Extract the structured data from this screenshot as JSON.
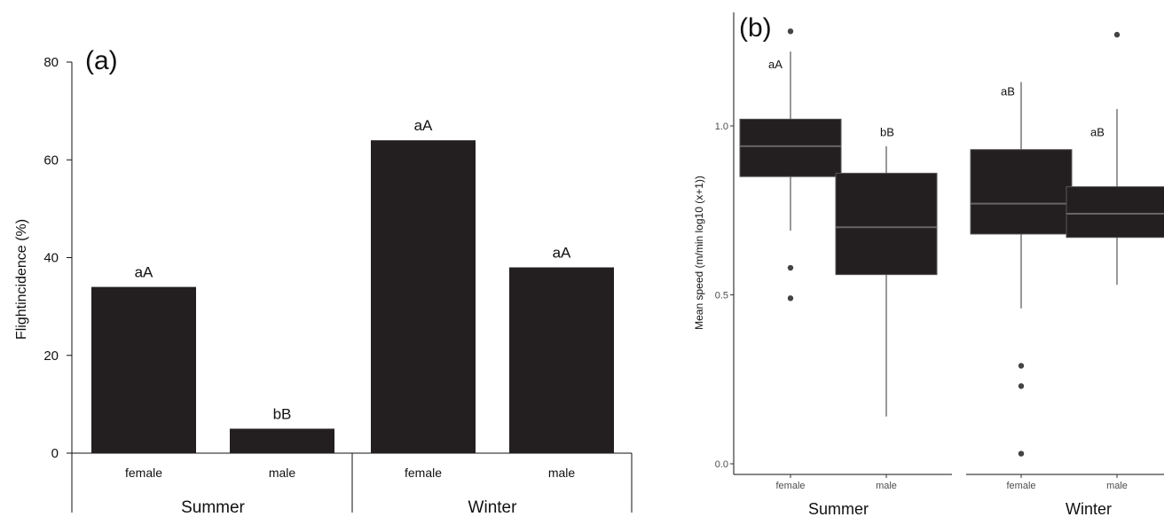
{
  "chart_data": [
    {
      "type": "bar",
      "panel_label": "(a)",
      "ylabel": "Flightincidence (%)",
      "ylim": [
        0,
        80
      ],
      "yticks": [
        "0",
        "20",
        "40",
        "60",
        "80"
      ],
      "groups": [
        "Summer",
        "Winter"
      ],
      "categories": [
        "female",
        "male",
        "female",
        "male"
      ],
      "values": [
        34,
        5,
        64,
        38
      ],
      "annotations": [
        "aA",
        "bB",
        "aA",
        "aA"
      ],
      "bar_color": "#231f20"
    },
    {
      "type": "box",
      "panel_label": "(b)",
      "ylabel": "Mean speed (m/min log10 (x+1))",
      "ylim": [
        0,
        1.3
      ],
      "yticks": [
        "0.0",
        "0.5",
        "1.0"
      ],
      "facets": [
        "Summer",
        "Winter"
      ],
      "categories": [
        "female",
        "male",
        "female",
        "male"
      ],
      "annotations": [
        "aA",
        "bB",
        "aB",
        "aB"
      ],
      "box_color": "#231f20",
      "boxes": [
        {
          "min": 0.69,
          "q1": 0.85,
          "median": 0.94,
          "q3": 1.02,
          "max": 1.22,
          "outliers": [
            1.28,
            0.58,
            0.49
          ]
        },
        {
          "min": 0.14,
          "q1": 0.56,
          "median": 0.7,
          "q3": 0.86,
          "max": 0.94,
          "outliers": []
        },
        {
          "min": 0.46,
          "q1": 0.68,
          "median": 0.77,
          "q3": 0.93,
          "max": 1.13,
          "outliers": [
            0.29,
            0.23,
            0.03
          ]
        },
        {
          "min": 0.53,
          "q1": 0.67,
          "median": 0.74,
          "q3": 0.82,
          "max": 1.05,
          "outliers": [
            1.27
          ]
        }
      ]
    }
  ]
}
